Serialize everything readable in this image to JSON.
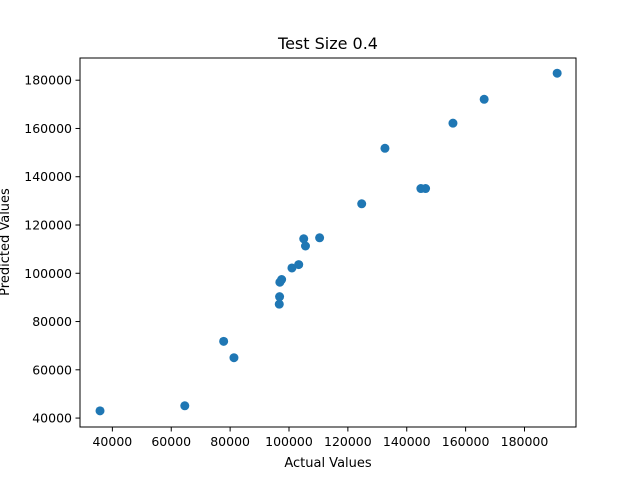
{
  "chart_data": {
    "type": "scatter",
    "title": "Test Size 0.4",
    "xlabel": "Actual Values",
    "ylabel": "Predicted Values",
    "xlim": [
      29000,
      197500
    ],
    "ylim": [
      36300,
      189200
    ],
    "x_ticks": [
      40000,
      60000,
      80000,
      100000,
      120000,
      140000,
      160000,
      180000
    ],
    "x_tick_labels": [
      "40000",
      "60000",
      "80000",
      "100000",
      "120000",
      "140000",
      "160000",
      "180000"
    ],
    "y_ticks": [
      40000,
      60000,
      80000,
      100000,
      120000,
      140000,
      160000,
      180000
    ],
    "y_tick_labels": [
      "40000",
      "60000",
      "80000",
      "100000",
      "120000",
      "140000",
      "160000",
      "180000"
    ],
    "grid": false,
    "marker_color": "#1f77b4",
    "points": [
      {
        "x": 35800,
        "y": 43000
      },
      {
        "x": 64600,
        "y": 45100
      },
      {
        "x": 77800,
        "y": 71800
      },
      {
        "x": 81300,
        "y": 65000
      },
      {
        "x": 96700,
        "y": 87200
      },
      {
        "x": 96800,
        "y": 90300
      },
      {
        "x": 96900,
        "y": 96300
      },
      {
        "x": 97500,
        "y": 97400
      },
      {
        "x": 101000,
        "y": 102200
      },
      {
        "x": 103300,
        "y": 103600
      },
      {
        "x": 105000,
        "y": 114300
      },
      {
        "x": 105600,
        "y": 111300
      },
      {
        "x": 110400,
        "y": 114700
      },
      {
        "x": 124700,
        "y": 128800
      },
      {
        "x": 132600,
        "y": 151800
      },
      {
        "x": 144800,
        "y": 135100
      },
      {
        "x": 146400,
        "y": 135100
      },
      {
        "x": 155700,
        "y": 162200
      },
      {
        "x": 166300,
        "y": 172100
      },
      {
        "x": 191100,
        "y": 182900
      }
    ]
  }
}
